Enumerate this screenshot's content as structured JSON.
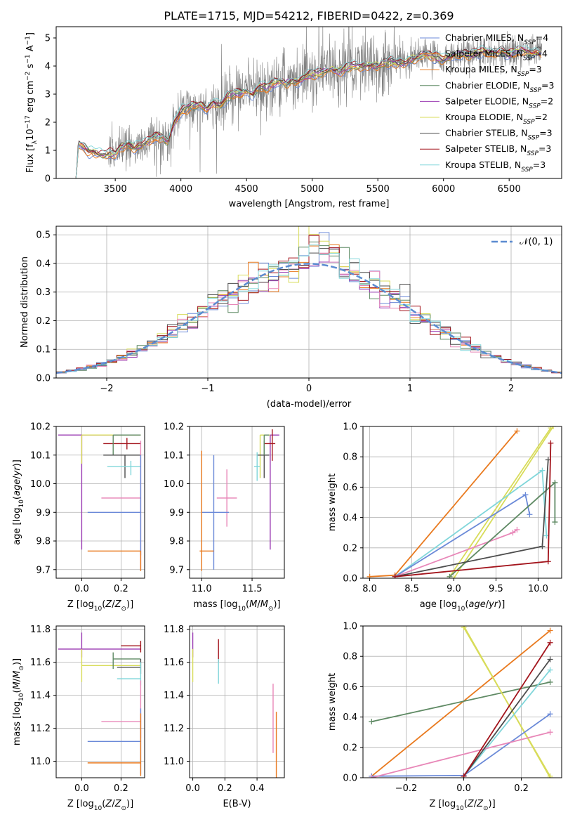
{
  "figure": {
    "title": "PLATE=1715, MJD=54212, FIBERID=0422, z=0.369"
  },
  "colors": {
    "chabrier_miles": "#6b8ad8",
    "salpeter_miles": "#e97a1f",
    "kroupa_miles": "#e97a1f",
    "chabrier_elodie": "#5f8a64",
    "salpeter_elodie": "#9b3cb3",
    "kroupa_elodie": "#d8dc5a",
    "chabrier_stelib": "#4d4d4d",
    "salpeter_stelib": "#a3141c",
    "kroupa_stelib": "#80d6da",
    "pink": "#e887b8",
    "observed": "#7f7f7f",
    "normal": "#5b8bd0",
    "grid": "#b0b0b0"
  },
  "chart_data": [
    {
      "id": "spectrum",
      "type": "line",
      "title": "PLATE=1715, MJD=54212, FIBERID=0422, z=0.369",
      "xlabel": "wavelength [Angstrom, rest frame]",
      "ylabel": "Flux [f_λ 10^-17 erg cm^-2 s^-1 A^-1]",
      "xlim": [
        3050,
        6900
      ],
      "ylim": [
        0,
        5.4
      ],
      "xticks": [
        3500,
        4000,
        4500,
        5000,
        5500,
        6000,
        6500
      ],
      "yticks": [
        0,
        1,
        2,
        3,
        4,
        5
      ],
      "grid": false,
      "legend_position": "top-right",
      "legend": [
        {
          "label": "Chabrier MILES, N_SSP=4",
          "color_key": "chabrier_miles"
        },
        {
          "label": "Salpeter MILES, N_SSP=4",
          "color_key": "salpeter_miles"
        },
        {
          "label": "Kroupa MILES, N_SSP=3",
          "color_key": "kroupa_miles"
        },
        {
          "label": "Chabrier ELODIE, N_SSP=3",
          "color_key": "chabrier_elodie"
        },
        {
          "label": "Salpeter ELODIE, N_SSP=2",
          "color_key": "salpeter_elodie"
        },
        {
          "label": "Kroupa ELODIE, N_SSP=2",
          "color_key": "kroupa_elodie"
        },
        {
          "label": "Chabrier STELIB, N_SSP=3",
          "color_key": "chabrier_stelib"
        },
        {
          "label": "Salpeter STELIB, N_SSP=3",
          "color_key": "salpeter_stelib"
        },
        {
          "label": "Kroupa STELIB, N_SSP=3",
          "color_key": "kroupa_stelib"
        }
      ],
      "model_curve": {
        "x": [
          3200,
          3220,
          3260,
          3300,
          3350,
          3400,
          3450,
          3500,
          3550,
          3600,
          3650,
          3700,
          3750,
          3800,
          3850,
          3900,
          3950,
          4000,
          4050,
          4100,
          4150,
          4200,
          4250,
          4300,
          4350,
          4400,
          4450,
          4500,
          4550,
          4600,
          4650,
          4700,
          4750,
          4800,
          4850,
          4900,
          4950,
          5000,
          5050,
          5100,
          5150,
          5200,
          5250,
          5300,
          5350,
          5400,
          5450,
          5500,
          5550,
          5600,
          5650,
          5700,
          5750,
          5800,
          5850,
          5900,
          5950,
          6000,
          6050,
          6100,
          6150,
          6200,
          6250,
          6300,
          6350,
          6400,
          6450,
          6500,
          6550,
          6600,
          6650,
          6700,
          6750
        ],
        "y": [
          0.9,
          1.25,
          1.1,
          0.95,
          0.9,
          0.85,
          0.9,
          0.85,
          1.1,
          1.2,
          1.1,
          1.2,
          1.3,
          1.45,
          1.5,
          1.3,
          2.0,
          2.4,
          2.5,
          2.55,
          2.6,
          2.5,
          2.75,
          2.55,
          2.85,
          3.0,
          3.05,
          3.1,
          3.0,
          3.3,
          3.2,
          3.35,
          3.45,
          3.4,
          3.5,
          3.45,
          3.6,
          3.7,
          3.75,
          3.8,
          3.9,
          3.8,
          3.9,
          4.0,
          3.95,
          4.0,
          4.05,
          4.0,
          4.1,
          4.15,
          4.05,
          4.1,
          4.25,
          4.3,
          4.4,
          4.35,
          4.3,
          4.25,
          4.3,
          4.4,
          4.45,
          4.4,
          4.45,
          4.5,
          4.45,
          4.5,
          4.55,
          4.4,
          4.5,
          4.55,
          4.45,
          4.5,
          4.5
        ]
      },
      "observed_xrange": [
        3200,
        6750
      ]
    },
    {
      "id": "residuals",
      "type": "line",
      "xlabel": "(data-model)/error",
      "ylabel": "Normed distribution",
      "xlim": [
        -2.5,
        2.5
      ],
      "ylim": [
        0,
        0.53
      ],
      "xticks": [
        -2,
        -1,
        0,
        1,
        2
      ],
      "yticks": [
        0.0,
        0.1,
        0.2,
        0.3,
        0.4,
        0.5
      ],
      "grid": true,
      "legend_position": "top-right",
      "legend": [
        {
          "label": "𝒩(0, 1)",
          "color_key": "normal",
          "style": "dashed"
        }
      ],
      "bin_width": 0.1
    },
    {
      "id": "age_vs_Z",
      "type": "scatter",
      "xlabel": "Z [log10(Z/Z_sun)]",
      "ylabel": "age [log10(age/yr)]",
      "xlim": [
        -0.13,
        0.32
      ],
      "ylim": [
        9.67,
        10.2
      ],
      "xticks": [
        0.0,
        0.2
      ],
      "yticks": [
        9.7,
        9.8,
        9.9,
        10.0,
        10.1,
        10.2
      ],
      "grid": true,
      "points": [
        {
          "x": 0.0,
          "y": 10.17,
          "xerr": [
            0.12,
            0.3
          ],
          "yerr": [
            0.4,
            0.0
          ],
          "color_key": "salpeter_elodie"
        },
        {
          "x": 0.0,
          "y": 10.17,
          "xerr": [
            0.0,
            0.3
          ],
          "yerr": [
            0.1,
            0.0
          ],
          "color_key": "kroupa_elodie"
        },
        {
          "x": 0.23,
          "y": 10.14,
          "xerr": [
            0.12,
            0.07
          ],
          "yerr": [
            0.02,
            0.02
          ],
          "color_key": "salpeter_stelib"
        },
        {
          "x": 0.16,
          "y": 10.17,
          "xerr": [
            0.0,
            0.14
          ],
          "yerr": [
            0.07,
            0.0
          ],
          "color_key": "chabrier_elodie"
        },
        {
          "x": 0.22,
          "y": 10.1,
          "xerr": [
            0.11,
            0.08
          ],
          "yerr": [
            0.08,
            0.0
          ],
          "color_key": "chabrier_stelib"
        },
        {
          "x": 0.25,
          "y": 10.06,
          "xerr": [
            0.12,
            0.05
          ],
          "yerr": [
            0.03,
            0.02
          ],
          "color_key": "kroupa_stelib"
        },
        {
          "x": 0.3,
          "y": 9.95,
          "xerr": [
            0.2,
            0.0
          ],
          "yerr": [
            0.25,
            0.2
          ],
          "color_key": "pink"
        },
        {
          "x": 0.3,
          "y": 9.9,
          "xerr": [
            0.27,
            0.0
          ],
          "yerr": [
            0.15,
            0.2
          ],
          "color_key": "chabrier_miles"
        },
        {
          "x": 0.3,
          "y": 9.765,
          "xerr": [
            0.27,
            0.0
          ],
          "yerr": [
            0.07,
            0.0
          ],
          "color_key": "salpeter_miles"
        }
      ]
    },
    {
      "id": "age_vs_mass",
      "type": "scatter",
      "xlabel": "mass [log10(M/M_sun)]",
      "ylabel": "",
      "xlim": [
        10.88,
        11.82
      ],
      "ylim": [
        9.67,
        10.2
      ],
      "xticks": [
        11.0,
        11.5
      ],
      "yticks": [
        9.7,
        9.8,
        9.9,
        10.0,
        10.1,
        10.2
      ],
      "grid": true,
      "points": [
        {
          "x": 11.68,
          "y": 10.17,
          "xerr": [
            0.0,
            0.09
          ],
          "yerr": [
            0.4,
            0.0
          ],
          "color_key": "salpeter_elodie"
        },
        {
          "x": 11.58,
          "y": 10.17,
          "xerr": [
            0.0,
            0.1
          ],
          "yerr": [
            0.15,
            0.0
          ],
          "color_key": "kroupa_elodie"
        },
        {
          "x": 11.7,
          "y": 10.14,
          "xerr": [
            0.08,
            0.03
          ],
          "yerr": [
            0.06,
            0.05
          ],
          "color_key": "salpeter_stelib"
        },
        {
          "x": 11.62,
          "y": 10.1,
          "xerr": [
            0.07,
            0.05
          ],
          "yerr": [
            0.08,
            0.05
          ],
          "color_key": "chabrier_stelib"
        },
        {
          "x": 11.62,
          "y": 10.17,
          "xerr": [
            0.0,
            0.05
          ],
          "yerr": [
            0.07,
            0.0
          ],
          "color_key": "chabrier_elodie"
        },
        {
          "x": 11.55,
          "y": 10.06,
          "xerr": [
            0.03,
            0.03
          ],
          "yerr": [
            0.05,
            0.05
          ],
          "color_key": "kroupa_stelib"
        },
        {
          "x": 11.25,
          "y": 9.95,
          "xerr": [
            0.1,
            0.1
          ],
          "yerr": [
            0.1,
            0.1
          ],
          "color_key": "pink"
        },
        {
          "x": 11.12,
          "y": 9.9,
          "xerr": [
            0.12,
            0.15
          ],
          "yerr": [
            0.2,
            0.2
          ],
          "color_key": "chabrier_miles"
        },
        {
          "x": 11.0,
          "y": 9.765,
          "xerr": [
            0.02,
            0.12
          ],
          "yerr": [
            0.07,
            0.35
          ],
          "color_key": "salpeter_miles"
        }
      ]
    },
    {
      "id": "massweight_vs_age",
      "type": "line",
      "xlabel": "age [log10(age/yr)]",
      "ylabel": "mass weight",
      "xlim": [
        7.92,
        10.28
      ],
      "ylim": [
        0,
        1.0
      ],
      "xticks": [
        8.0,
        8.5,
        9.0,
        9.5,
        10.0
      ],
      "yticks": [
        0.0,
        0.2,
        0.4,
        0.6,
        0.8,
        1.0
      ],
      "grid": true,
      "series": [
        {
          "color_key": "salpeter_miles",
          "x": [
            8.0,
            8.3,
            9.75
          ],
          "y": [
            0.01,
            0.02,
            0.97
          ]
        },
        {
          "color_key": "kroupa_elodie",
          "x": [
            9.0,
            10.18
          ],
          "y": [
            0.0,
            1.0
          ]
        },
        {
          "color_key": "kroupa_elodie",
          "x": [
            8.95,
            10.15
          ],
          "y": [
            0.01,
            0.99
          ]
        },
        {
          "color_key": "kroupa_stelib",
          "x": [
            8.3,
            10.05,
            10.1
          ],
          "y": [
            0.01,
            0.71,
            0.28
          ]
        },
        {
          "color_key": "chabrier_miles",
          "x": [
            8.3,
            9.85,
            9.9
          ],
          "y": [
            0.01,
            0.55,
            0.42
          ]
        },
        {
          "color_key": "pink",
          "x": [
            8.3,
            9.7,
            9.75
          ],
          "y": [
            0.01,
            0.3,
            0.32
          ]
        },
        {
          "color_key": "chabrier_elodie",
          "x": [
            8.95,
            10.2,
            10.2
          ],
          "y": [
            0.01,
            0.63,
            0.37
          ]
        },
        {
          "color_key": "chabrier_stelib",
          "x": [
            8.3,
            10.05,
            10.12
          ],
          "y": [
            0.01,
            0.21,
            0.78
          ]
        },
        {
          "color_key": "salpeter_stelib",
          "x": [
            8.3,
            10.12,
            10.15
          ],
          "y": [
            0.01,
            0.11,
            0.89
          ]
        }
      ]
    },
    {
      "id": "mass_vs_Z",
      "type": "scatter",
      "xlabel": "Z [log10(Z/Z_sun)]",
      "ylabel": "mass [log10(M/M_sun)]",
      "xlim": [
        -0.13,
        0.32
      ],
      "ylim": [
        10.9,
        11.82
      ],
      "xticks": [
        0.0,
        0.2
      ],
      "yticks": [
        11.0,
        11.2,
        11.4,
        11.6,
        11.8
      ],
      "grid": true,
      "points": [
        {
          "x": 0.0,
          "y": 11.68,
          "xerr": [
            0.12,
            0.3
          ],
          "yerr": [
            0.05,
            0.1
          ],
          "color_key": "salpeter_elodie"
        },
        {
          "x": 0.0,
          "y": 11.58,
          "xerr": [
            0.0,
            0.3
          ],
          "yerr": [
            0.1,
            0.1
          ],
          "color_key": "kroupa_elodie"
        },
        {
          "x": 0.3,
          "y": 11.7,
          "xerr": [
            0.1,
            0.0
          ],
          "yerr": [
            0.04,
            0.03
          ],
          "color_key": "salpeter_stelib"
        },
        {
          "x": 0.16,
          "y": 11.62,
          "xerr": [
            0.0,
            0.14
          ],
          "yerr": [
            0.06,
            0.04
          ],
          "color_key": "chabrier_elodie"
        },
        {
          "x": 0.3,
          "y": 11.57,
          "xerr": [
            0.12,
            0.0
          ],
          "yerr": [
            0.04,
            0.05
          ],
          "color_key": "chabrier_stelib"
        },
        {
          "x": 0.3,
          "y": 11.5,
          "xerr": [
            0.12,
            0.0
          ],
          "yerr": [
            0.04,
            0.1
          ],
          "color_key": "kroupa_stelib"
        },
        {
          "x": 0.3,
          "y": 11.24,
          "xerr": [
            0.2,
            0.0
          ],
          "yerr": [
            0.1,
            0.25
          ],
          "color_key": "pink"
        },
        {
          "x": 0.3,
          "y": 11.12,
          "xerr": [
            0.27,
            0.0
          ],
          "yerr": [
            0.2,
            0.2
          ],
          "color_key": "chabrier_miles"
        },
        {
          "x": 0.3,
          "y": 10.99,
          "xerr": [
            0.27,
            0.0
          ],
          "yerr": [
            0.08,
            0.3
          ],
          "color_key": "salpeter_miles"
        }
      ]
    },
    {
      "id": "mass_vs_ebv",
      "type": "scatter",
      "xlabel": "E(B-V)",
      "ylabel": "",
      "xlim": [
        -0.02,
        0.57
      ],
      "ylim": [
        10.9,
        11.82
      ],
      "xticks": [
        0.0,
        0.2,
        0.4
      ],
      "yticks": [
        11.0,
        11.2,
        11.4,
        11.6,
        11.8
      ],
      "grid": true,
      "points": [
        {
          "x": 0.0,
          "y": 11.68,
          "xerr": [
            0,
            0
          ],
          "yerr": [
            0.05,
            0.1
          ],
          "color_key": "salpeter_elodie"
        },
        {
          "x": 0.0,
          "y": 11.58,
          "xerr": [
            0,
            0
          ],
          "yerr": [
            0.1,
            0.1
          ],
          "color_key": "kroupa_elodie"
        },
        {
          "x": 0.16,
          "y": 11.65,
          "xerr": [
            0,
            0
          ],
          "yerr": [
            0.05,
            0.09
          ],
          "color_key": "salpeter_stelib"
        },
        {
          "x": 0.16,
          "y": 11.57,
          "xerr": [
            0,
            0
          ],
          "yerr": [
            0.1,
            0.05
          ],
          "color_key": "kroupa_stelib"
        },
        {
          "x": 0.5,
          "y": 11.25,
          "xerr": [
            0,
            0
          ],
          "yerr": [
            0.2,
            0.22
          ],
          "color_key": "pink"
        },
        {
          "x": 0.52,
          "y": 11.1,
          "xerr": [
            0,
            0
          ],
          "yerr": [
            0.2,
            0.2
          ],
          "color_key": "salpeter_miles"
        }
      ]
    },
    {
      "id": "massweight_vs_Z",
      "type": "line",
      "xlabel": "Z [log10(Z/Z_sun)]",
      "ylabel": "mass weight",
      "xlim": [
        -0.35,
        0.34
      ],
      "ylim": [
        0,
        1.0
      ],
      "xticks": [
        -0.2,
        0.0,
        0.2
      ],
      "yticks": [
        0.0,
        0.2,
        0.4,
        0.6,
        0.8,
        1.0
      ],
      "grid": true,
      "series": [
        {
          "color_key": "salpeter_miles",
          "x": [
            -0.32,
            0.3
          ],
          "y": [
            0.01,
            0.97
          ]
        },
        {
          "color_key": "chabrier_elodie",
          "x": [
            -0.32,
            0.3
          ],
          "y": [
            0.37,
            0.63
          ]
        },
        {
          "color_key": "kroupa_elodie",
          "x": [
            0.0,
            0.3
          ],
          "y": [
            1.0,
            0.0
          ]
        },
        {
          "color_key": "kroupa_elodie",
          "x": [
            0.0,
            0.3
          ],
          "y": [
            0.99,
            0.01
          ]
        },
        {
          "color_key": "kroupa_stelib",
          "x": [
            0.0,
            0.3
          ],
          "y": [
            0.01,
            0.71
          ]
        },
        {
          "color_key": "chabrier_miles",
          "x": [
            -0.32,
            0.0,
            0.3
          ],
          "y": [
            0.01,
            0.015,
            0.42
          ]
        },
        {
          "color_key": "pink",
          "x": [
            -0.32,
            0.3
          ],
          "y": [
            0.0,
            0.3
          ]
        },
        {
          "color_key": "chabrier_stelib",
          "x": [
            0.0,
            0.3
          ],
          "y": [
            0.01,
            0.78
          ]
        },
        {
          "color_key": "salpeter_stelib",
          "x": [
            0.0,
            0.3
          ],
          "y": [
            0.01,
            0.89
          ]
        }
      ]
    }
  ]
}
